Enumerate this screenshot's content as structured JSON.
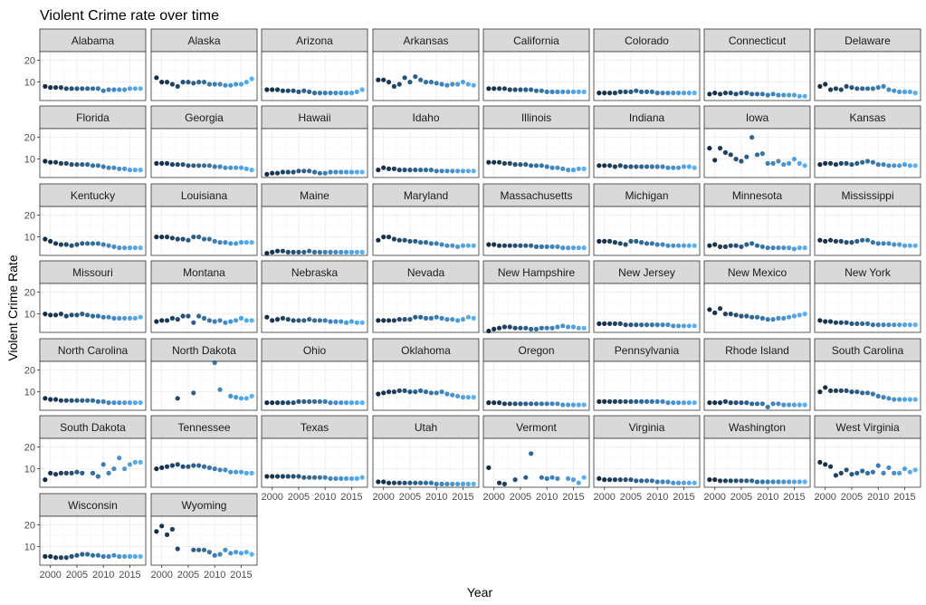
{
  "chart_data": {
    "type": "scatter",
    "title": "Violent Crime rate over time",
    "xlabel": "Year",
    "ylabel": "Violent Crime Rate",
    "xlim": [
      1998,
      2018
    ],
    "ylim": [
      1.5,
      24
    ],
    "x_ticks": [
      2000,
      2005,
      2010,
      2015
    ],
    "y_ticks": [
      10,
      20
    ],
    "grid": true,
    "legend": "none",
    "color_low": "#132b43",
    "color_high": "#56b1f7",
    "years": [
      1999,
      2000,
      2001,
      2002,
      2003,
      2004,
      2005,
      2006,
      2007,
      2008,
      2009,
      2010,
      2011,
      2012,
      2013,
      2014,
      2015,
      2016,
      2017
    ],
    "panels": [
      {
        "name": "Alabama",
        "values": [
          8,
          7.5,
          7.5,
          7.5,
          7,
          7,
          7,
          7,
          7,
          7,
          7,
          6,
          6.5,
          6.5,
          6.5,
          6.5,
          7,
          7,
          7
        ]
      },
      {
        "name": "Alaska",
        "values": [
          12,
          10,
          10,
          9,
          8,
          10,
          10,
          9.5,
          10,
          10,
          9,
          9,
          9,
          8.5,
          8.5,
          9,
          9,
          10,
          11.5
        ]
      },
      {
        "name": "Arizona",
        "values": [
          6.5,
          6.5,
          6.5,
          6,
          6,
          6,
          5.5,
          6,
          5.5,
          5,
          5,
          5,
          5,
          5,
          5,
          5,
          5,
          5.5,
          6.5
        ]
      },
      {
        "name": "Arkansas",
        "values": [
          11,
          11,
          10,
          8,
          9,
          12,
          10,
          12.5,
          11,
          10,
          10,
          9.5,
          9,
          8.5,
          9,
          9,
          10,
          9,
          8.5
        ]
      },
      {
        "name": "California",
        "values": [
          7,
          7,
          7,
          7,
          6.5,
          6.5,
          6.5,
          6.5,
          6.5,
          6,
          6,
          5.5,
          5.5,
          5.5,
          5.5,
          5.5,
          5.5,
          5.5,
          5.5
        ]
      },
      {
        "name": "Colorado",
        "values": [
          5,
          5,
          5,
          5,
          5.5,
          5.5,
          5.5,
          6,
          5.5,
          5.5,
          5.5,
          5,
          5,
          5,
          5,
          5,
          5,
          5,
          5
        ]
      },
      {
        "name": "Connecticut",
        "values": [
          4.5,
          5,
          4.5,
          5,
          5,
          4.5,
          5,
          5,
          4.5,
          4.5,
          4.5,
          4,
          4.5,
          4,
          4,
          4,
          4,
          3.5,
          3.5
        ]
      },
      {
        "name": "Delaware",
        "values": [
          8,
          9,
          6.5,
          7,
          6.5,
          8,
          7.5,
          7,
          7,
          7,
          7,
          7.5,
          8,
          6.5,
          6,
          5.5,
          5.5,
          5.5,
          5
        ]
      },
      {
        "name": "Florida",
        "values": [
          9,
          8.5,
          8.5,
          8,
          8,
          7.5,
          7.5,
          7.5,
          7.5,
          7,
          7,
          6.5,
          6,
          6,
          5.5,
          5.5,
          5,
          5,
          5
        ]
      },
      {
        "name": "Georgia",
        "values": [
          8,
          8,
          8,
          7.5,
          7.5,
          7.5,
          7,
          7,
          7,
          7,
          7,
          6.5,
          6.5,
          6,
          6,
          6,
          6,
          5.5,
          5
        ]
      },
      {
        "name": "Hawaii",
        "values": [
          3,
          3.5,
          3.5,
          4,
          4,
          4,
          4.5,
          4.5,
          4.5,
          4,
          3.5,
          3.5,
          4,
          4,
          4,
          4,
          4,
          4,
          4
        ]
      },
      {
        "name": "Idaho",
        "values": [
          5,
          6,
          5.5,
          5.5,
          5,
          5,
          5,
          5,
          5,
          5,
          5,
          4.5,
          4.5,
          4.5,
          4.5,
          4.5,
          4.5,
          4.5,
          4.5
        ]
      },
      {
        "name": "Illinois",
        "values": [
          8.5,
          8.5,
          8.5,
          8,
          8,
          7.5,
          7.5,
          7.5,
          7,
          7,
          7,
          6.5,
          6,
          6,
          5.5,
          5,
          5,
          5.5,
          5.5
        ]
      },
      {
        "name": "Indiana",
        "values": [
          7,
          7,
          7,
          6.5,
          7,
          6.5,
          6.5,
          6.5,
          6.5,
          6.5,
          6.5,
          6.5,
          6.5,
          6,
          6,
          6,
          6.5,
          6.5,
          6
        ]
      },
      {
        "name": "Iowa",
        "values": [
          15,
          9.5,
          15,
          13,
          12,
          10,
          9,
          11,
          20,
          12,
          12.5,
          8,
          8,
          9,
          7.5,
          8,
          10,
          8,
          7
        ]
      },
      {
        "name": "Kansas",
        "values": [
          7.5,
          8,
          8,
          7.5,
          8,
          8,
          7.5,
          8,
          8.5,
          9,
          8.5,
          7.5,
          7.5,
          7,
          7,
          7,
          7.5,
          7,
          7
        ]
      },
      {
        "name": "Kentucky",
        "values": [
          9,
          8,
          7,
          6.5,
          6.5,
          6,
          6.5,
          7,
          7,
          7,
          7,
          6.5,
          6,
          5.5,
          5,
          5,
          5,
          5,
          5
        ]
      },
      {
        "name": "Louisiana",
        "values": [
          10,
          10,
          10,
          9.5,
          9,
          9,
          8.5,
          10,
          10,
          9,
          9,
          8,
          7.5,
          7.5,
          7,
          7,
          7.5,
          7.5,
          7.5
        ]
      },
      {
        "name": "Maine",
        "values": [
          2.5,
          3,
          3.5,
          3.5,
          3,
          3,
          3,
          3,
          3.5,
          3,
          3,
          3,
          3,
          3,
          3,
          3,
          3,
          3,
          3
        ]
      },
      {
        "name": "Maryland",
        "values": [
          8.5,
          10,
          10,
          9,
          8.5,
          8.5,
          8,
          8,
          7.5,
          7.5,
          7,
          7,
          6.5,
          6,
          6,
          5.5,
          6,
          6,
          6
        ]
      },
      {
        "name": "Massachusetts",
        "values": [
          6.5,
          6.5,
          6,
          6,
          6,
          6,
          6,
          6,
          6,
          5.5,
          5.5,
          5.5,
          5.5,
          5.5,
          5,
          5,
          5,
          5,
          5
        ]
      },
      {
        "name": "Michigan",
        "values": [
          8,
          8,
          8,
          7.5,
          7,
          6.5,
          8,
          8,
          7.5,
          7,
          7,
          6.5,
          6.5,
          6,
          6,
          6,
          6,
          6,
          6
        ]
      },
      {
        "name": "Minnesota",
        "values": [
          6,
          6.5,
          5.5,
          5.5,
          6,
          6,
          5.5,
          6.5,
          7,
          6,
          5.5,
          5,
          5,
          5,
          5,
          5,
          4.5,
          5,
          5
        ]
      },
      {
        "name": "Mississippi",
        "values": [
          8.5,
          8,
          8.5,
          8,
          8,
          7.5,
          7.5,
          8,
          8.5,
          8.5,
          7.5,
          7,
          7,
          7,
          6.5,
          6.5,
          6,
          6,
          6
        ]
      },
      {
        "name": "Missouri",
        "values": [
          10,
          9.5,
          9.5,
          10,
          9,
          9.5,
          9.5,
          10,
          9.5,
          9,
          9,
          8.5,
          8.5,
          8,
          8,
          8,
          8,
          8,
          8.5
        ]
      },
      {
        "name": "Montana",
        "values": [
          6.5,
          7,
          7,
          8,
          7.5,
          9,
          9,
          6,
          9,
          8,
          7,
          6.5,
          7,
          6,
          6.5,
          7,
          8,
          7,
          7
        ]
      },
      {
        "name": "Nebraska",
        "values": [
          8.5,
          7,
          7.5,
          8,
          7.5,
          7,
          7,
          7,
          7.5,
          7,
          7,
          7,
          6.5,
          6.5,
          6.5,
          6,
          6.5,
          6,
          6
        ]
      },
      {
        "name": "Nevada",
        "values": [
          7,
          7,
          7,
          7,
          7.5,
          7.5,
          7.5,
          8.5,
          8.5,
          8,
          8,
          8.5,
          8,
          7.5,
          7.5,
          7,
          7.5,
          8.5,
          8
        ]
      },
      {
        "name": "New Hampshire",
        "values": [
          2,
          3,
          3.5,
          4,
          4,
          3.5,
          3.5,
          3.5,
          3,
          3,
          3.5,
          3.5,
          3.5,
          4,
          4.5,
          4,
          4,
          3.5,
          3.5
        ]
      },
      {
        "name": "New Jersey",
        "values": [
          5.5,
          5.5,
          5.5,
          5.5,
          5.5,
          5,
          5,
          5,
          5,
          5,
          5,
          5,
          5,
          5,
          4.5,
          4.5,
          4.5,
          4.5,
          4.5
        ]
      },
      {
        "name": "New Mexico",
        "values": [
          12,
          10.5,
          12.5,
          10,
          10,
          9.5,
          9,
          9,
          8.5,
          8.5,
          8,
          7.5,
          7.5,
          8,
          8,
          8.5,
          9,
          9.5,
          10
        ]
      },
      {
        "name": "New York",
        "values": [
          7,
          6.5,
          6.5,
          6,
          6,
          6,
          5.5,
          5.5,
          5.5,
          5.5,
          5,
          5,
          5,
          5,
          5,
          5,
          5,
          5,
          5
        ]
      },
      {
        "name": "North Carolina",
        "values": [
          7,
          6.5,
          6.5,
          6,
          6,
          6,
          6,
          6,
          6,
          6,
          5.5,
          5.5,
          5,
          5,
          5,
          5,
          5,
          5,
          5
        ]
      },
      {
        "name": "North Dakota",
        "values": [
          null,
          null,
          null,
          null,
          7,
          null,
          null,
          9.5,
          null,
          null,
          null,
          25,
          11,
          null,
          8,
          7.5,
          7,
          7,
          8
        ]
      },
      {
        "name": "Ohio",
        "values": [
          5,
          5,
          5,
          5,
          5,
          5,
          5.5,
          5.5,
          5.5,
          5.5,
          5.5,
          5.5,
          5,
          5,
          5,
          5,
          5,
          5,
          5
        ]
      },
      {
        "name": "Oklahoma",
        "values": [
          9,
          9.5,
          10,
          10,
          10.5,
          10.5,
          10,
          10,
          10.5,
          10,
          9.5,
          9.5,
          10,
          9,
          8.5,
          8,
          7.5,
          7.5,
          7.5
        ]
      },
      {
        "name": "Oregon",
        "values": [
          5,
          5,
          5,
          4.5,
          4.5,
          4.5,
          4.5,
          4.5,
          4.5,
          4.5,
          4.5,
          4.5,
          4.5,
          4.5,
          4,
          4,
          4,
          4,
          4
        ]
      },
      {
        "name": "Pennsylvania",
        "values": [
          5.5,
          5.5,
          5.5,
          5.5,
          5.5,
          5.5,
          5.5,
          5.5,
          5.5,
          5.5,
          5.5,
          5.5,
          5.5,
          5,
          5,
          5,
          5,
          5,
          5
        ]
      },
      {
        "name": "Rhode Island",
        "values": [
          5,
          5,
          5,
          5.5,
          5,
          5,
          5,
          5,
          4.5,
          4.5,
          4.5,
          3,
          4.5,
          4.5,
          4,
          4,
          4,
          4,
          4
        ]
      },
      {
        "name": "South Carolina",
        "values": [
          10,
          12,
          10.5,
          10.5,
          10.5,
          10.5,
          10,
          10,
          9.5,
          9.5,
          9,
          8,
          7.5,
          7,
          6.5,
          6.5,
          6.5,
          6.5,
          6.5
        ]
      },
      {
        "name": "South Dakota",
        "values": [
          5,
          8,
          7.5,
          8,
          8,
          8,
          8.5,
          8,
          null,
          8,
          6.5,
          12,
          8,
          10,
          15,
          10,
          12,
          13,
          13
        ]
      },
      {
        "name": "Tennessee",
        "values": [
          10,
          10.5,
          11,
          11.5,
          12,
          11,
          11,
          11.5,
          11.5,
          11,
          10.5,
          10,
          9.5,
          9.5,
          8.5,
          8.5,
          8.5,
          8,
          8
        ]
      },
      {
        "name": "Texas",
        "values": [
          6.5,
          6.5,
          6.5,
          6.5,
          6.5,
          6.5,
          6.5,
          6,
          6,
          6,
          6,
          6,
          5.5,
          5.5,
          5.5,
          5.5,
          5.5,
          5.5,
          6
        ]
      },
      {
        "name": "Utah",
        "values": [
          4,
          4,
          3.5,
          3.5,
          3.5,
          3.5,
          3.5,
          3.5,
          3.5,
          3.5,
          3.5,
          3,
          3,
          3,
          3,
          3,
          3,
          3,
          3
        ]
      },
      {
        "name": "Vermont",
        "values": [
          10.5,
          null,
          3.5,
          3,
          null,
          5,
          null,
          6,
          17,
          null,
          6,
          5.5,
          6,
          5.5,
          null,
          5.5,
          5,
          3.5,
          6
        ]
      },
      {
        "name": "Virginia",
        "values": [
          5.5,
          5,
          5,
          5,
          5,
          5,
          5,
          4.5,
          4.5,
          4.5,
          4.5,
          4,
          4,
          4,
          3.5,
          3.5,
          3.5,
          3.5,
          3.5
        ]
      },
      {
        "name": "Washington",
        "values": [
          5,
          5,
          4.5,
          4.5,
          4.5,
          4.5,
          4.5,
          4.5,
          4.5,
          4,
          4,
          4,
          4,
          4,
          4,
          4,
          4,
          4,
          4
        ]
      },
      {
        "name": "West Virginia",
        "values": [
          13,
          12,
          11,
          7,
          8,
          9.5,
          7.5,
          8,
          9,
          8,
          8.5,
          11.5,
          8,
          10.5,
          8,
          8,
          10,
          8.5,
          9.5
        ]
      },
      {
        "name": "Wisconsin",
        "values": [
          5.5,
          5.5,
          5,
          5,
          5,
          5.5,
          6,
          6.5,
          6.5,
          6,
          6,
          5.5,
          5.5,
          6,
          5.5,
          5.5,
          5.5,
          5.5,
          5.5
        ]
      },
      {
        "name": "Wyoming",
        "values": [
          17,
          19.5,
          15.5,
          18,
          9,
          null,
          null,
          8.5,
          8.5,
          8.5,
          7.5,
          6,
          6.5,
          8.5,
          7,
          7.5,
          7,
          7.5,
          6.5
        ]
      }
    ]
  }
}
